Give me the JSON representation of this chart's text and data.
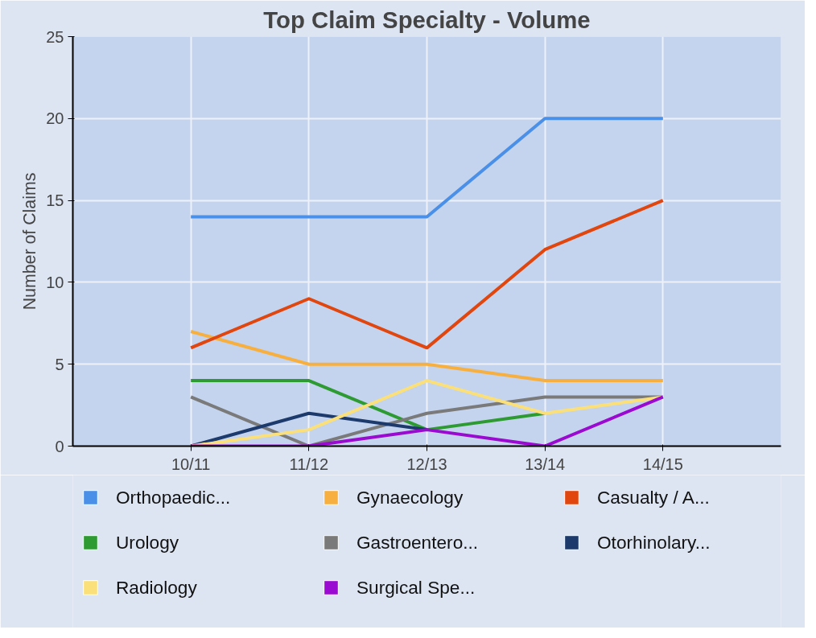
{
  "chart_data": {
    "type": "line",
    "title": "Top Claim Specialty - Volume",
    "ylabel": "Number of Claims",
    "categories": [
      "10/11",
      "11/12",
      "12/13",
      "13/14",
      "14/15"
    ],
    "series": [
      {
        "name": "Orthopaedic...",
        "color": "#4a90e8",
        "values": [
          14,
          14,
          14,
          20,
          20
        ]
      },
      {
        "name": "Gynaecology",
        "color": "#f7b040",
        "values": [
          7,
          5,
          5,
          4,
          4
        ]
      },
      {
        "name": "Casualty / A...",
        "color": "#e0460e",
        "values": [
          6,
          9,
          6,
          12,
          15
        ]
      },
      {
        "name": "Urology",
        "color": "#2e9a32",
        "values": [
          4,
          4,
          1,
          2,
          null
        ]
      },
      {
        "name": "Gastroentero...",
        "color": "#7a7a7a",
        "values": [
          3,
          0,
          2,
          3,
          3
        ]
      },
      {
        "name": "Otorhinolary...",
        "color": "#1c3a6c",
        "values": [
          0,
          2,
          1,
          null,
          null
        ]
      },
      {
        "name": "Radiology",
        "color": "#fbe07a",
        "values": [
          0,
          1,
          4,
          2,
          3
        ]
      },
      {
        "name": "Surgical Spe...",
        "color": "#9a0ad0",
        "values": [
          0,
          0,
          1,
          0,
          3
        ]
      }
    ],
    "ylim": [
      0,
      25
    ],
    "yticks": [
      0,
      5,
      10,
      15,
      20,
      25
    ],
    "grid": true,
    "legend": "bottom",
    "marker": "none",
    "line_style": "solid"
  }
}
